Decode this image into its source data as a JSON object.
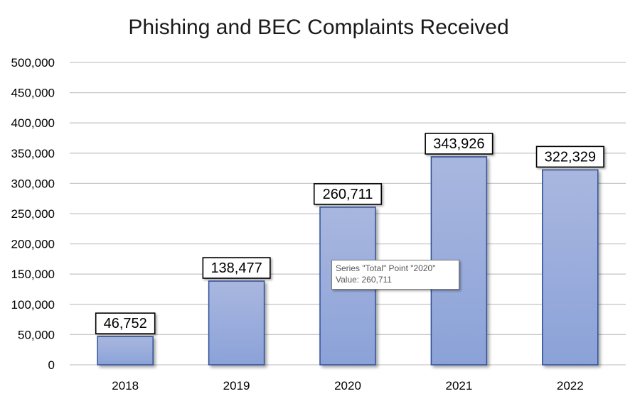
{
  "chart_data": {
    "type": "bar",
    "title": "Phishing and BEC Complaints Received",
    "series_name": "Total",
    "categories": [
      "2018",
      "2019",
      "2020",
      "2021",
      "2022"
    ],
    "values": [
      46752,
      138477,
      260711,
      343926,
      322329
    ],
    "data_labels": [
      "46,752",
      "138,477",
      "260,711",
      "343,926",
      "322,329"
    ],
    "ylim": [
      0,
      500000
    ],
    "y_ticks": [
      0,
      50000,
      100000,
      150000,
      200000,
      250000,
      300000,
      350000,
      400000,
      450000,
      500000
    ],
    "y_tick_labels": [
      "0",
      "50,000",
      "100,000",
      "150,000",
      "200,000",
      "250,000",
      "300,000",
      "350,000",
      "400,000",
      "450,000",
      "500,000"
    ],
    "xlabel": "",
    "ylabel": "",
    "grid": true,
    "legend": "none",
    "colors": {
      "bar_top": "#a9b7df",
      "bar_bottom": "#8ba2d8",
      "bar_edge": "#2f4f9a",
      "grid": "#c8c8c8"
    }
  },
  "tooltip": {
    "line1": "Series \"Total\" Point \"2020\"",
    "line2": "Value: 260,711"
  }
}
